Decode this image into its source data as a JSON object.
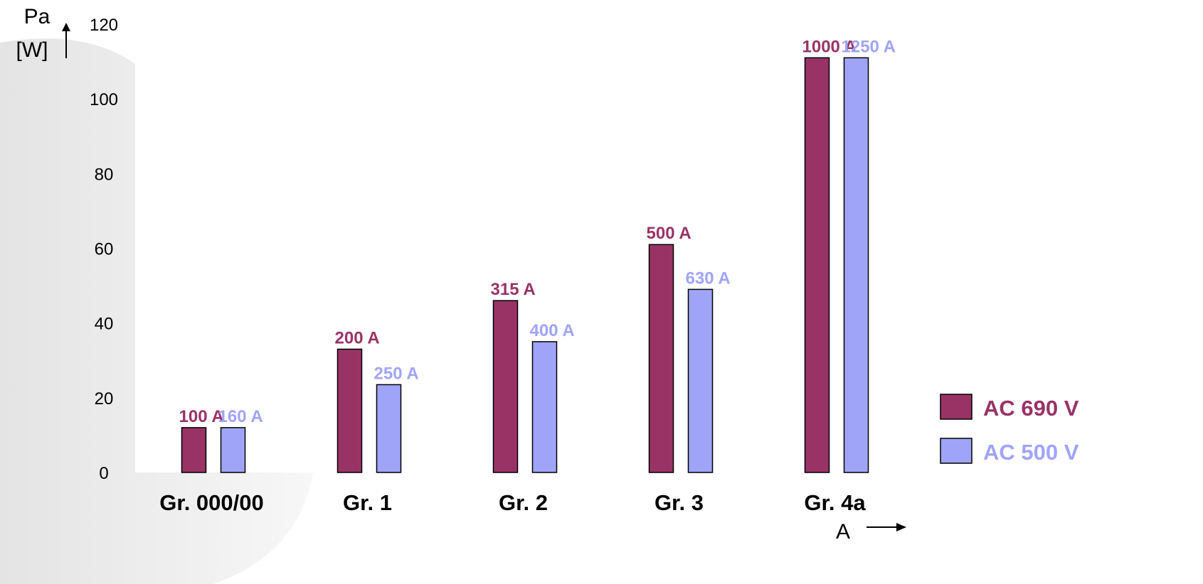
{
  "chart_data": {
    "type": "bar",
    "y_axis_label": [
      "Pa",
      "[W]"
    ],
    "x_axis_label": "A",
    "categories": [
      "Gr. 000/00",
      "Gr. 1",
      "Gr. 2",
      "Gr. 3",
      "Gr. 4a"
    ],
    "series": [
      {
        "name": "AC 690 V",
        "color": "#993366",
        "values": [
          12,
          33,
          46,
          61,
          111
        ],
        "labels": [
          "100 A",
          "200 A",
          "315 A",
          "500 A",
          "1000 A"
        ]
      },
      {
        "name": "AC 500 V",
        "color": "#a0a4f8",
        "values": [
          12,
          23.5,
          35,
          49,
          111
        ],
        "labels": [
          "160 A",
          "250 A",
          "400 A",
          "630 A",
          "1250 A"
        ]
      }
    ],
    "ylim": [
      0,
      120
    ],
    "yticks": [
      0,
      20,
      40,
      60,
      80,
      100,
      120
    ],
    "grid": false,
    "legend": "lower right"
  }
}
